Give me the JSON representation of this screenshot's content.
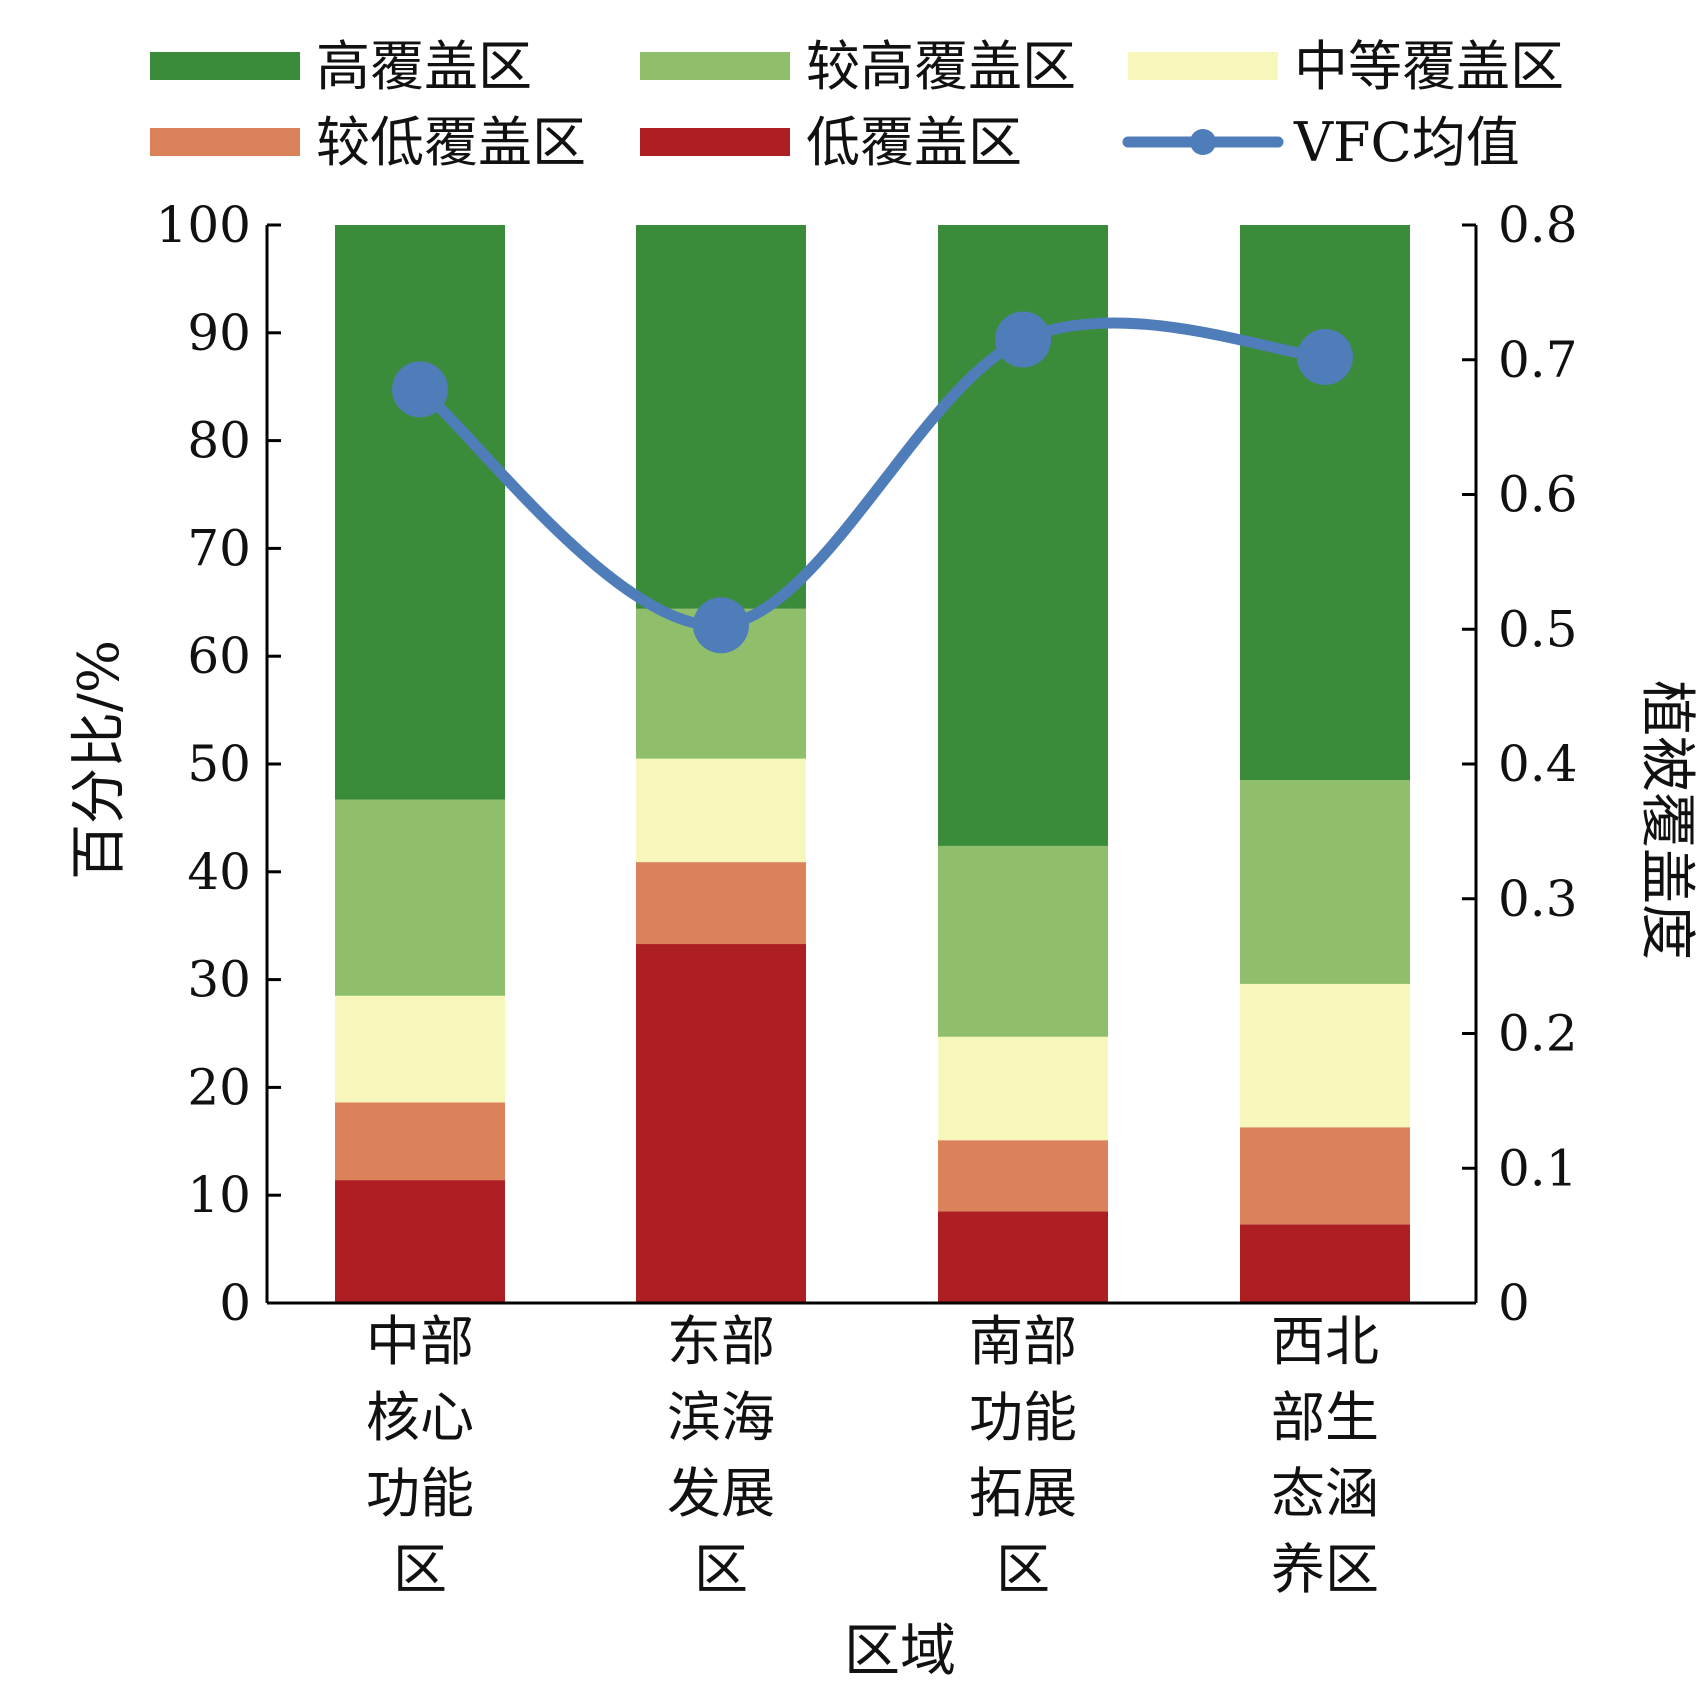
{
  "chart_data": {
    "type": "bar",
    "stacked": true,
    "categories": [
      [
        "中部",
        "核心",
        "功能",
        "区"
      ],
      [
        "东部",
        "滨海",
        "发展",
        "区"
      ],
      [
        "南部",
        "功能",
        "拓展",
        "区"
      ],
      [
        "西北",
        "部生",
        "态涵",
        "养区"
      ]
    ],
    "series": [
      {
        "name": "低覆盖区",
        "color": "#ae1f24",
        "values": [
          11.4,
          33.3,
          8.5,
          7.3
        ]
      },
      {
        "name": "较低覆盖区",
        "color": "#dc825b",
        "values": [
          7.2,
          7.6,
          6.6,
          9.0
        ]
      },
      {
        "name": "中等覆盖区",
        "color": "#f7f6bb",
        "values": [
          9.9,
          9.6,
          9.6,
          13.3
        ]
      },
      {
        "name": "较高覆盖区",
        "color": "#8fbf6a",
        "values": [
          18.2,
          13.9,
          17.7,
          18.9
        ]
      },
      {
        "name": "高覆盖区",
        "color": "#3a8c3b",
        "values": [
          53.3,
          35.6,
          57.6,
          51.5
        ]
      }
    ],
    "line_series": {
      "name": "VFC均值",
      "color": "#4f7db9",
      "values": [
        0.678,
        0.503,
        0.715,
        0.702
      ]
    },
    "legend_order": [
      "高覆盖区",
      "较高覆盖区",
      "中等覆盖区",
      "较低覆盖区",
      "低覆盖区",
      "VFC均值"
    ],
    "xlabel": "区域",
    "ylabel": "百分比/%",
    "y2label": "植被覆盖度",
    "ylim": [
      0,
      100
    ],
    "y2lim": [
      0,
      0.8
    ],
    "yticks": [
      "0",
      "10",
      "20",
      "30",
      "40",
      "50",
      "60",
      "70",
      "80",
      "90",
      "100"
    ],
    "y2ticks": [
      "0",
      "0.1",
      "0.2",
      "0.3",
      "0.4",
      "0.5",
      "0.6",
      "0.7",
      "0.8"
    ],
    "grid": false,
    "legend_position": "top"
  }
}
